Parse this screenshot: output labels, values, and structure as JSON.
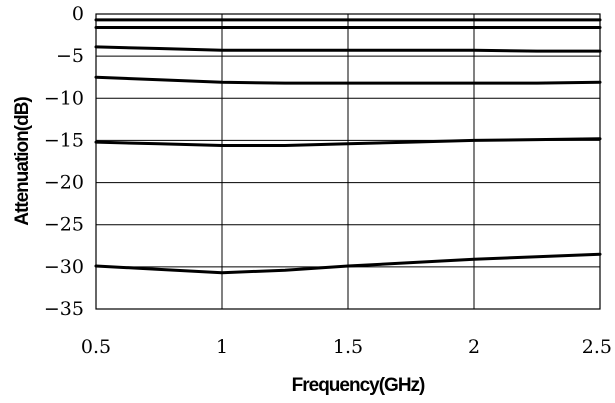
{
  "chart_data": {
    "type": "line",
    "title": "",
    "xlabel": "Frequency(GHz)",
    "ylabel": "Attenuation(dB)",
    "xlim": [
      0.5,
      2.5
    ],
    "ylim": [
      -35,
      0
    ],
    "xticks": [
      "0.5",
      "1",
      "1.5",
      "2",
      "2.5"
    ],
    "yticks": [
      "0",
      "−5",
      "−10",
      "−15",
      "−20",
      "−25",
      "−30",
      "−35"
    ],
    "grid": true,
    "legend": "none",
    "x": [
      0.5,
      0.75,
      1.0,
      1.25,
      1.5,
      1.75,
      2.0,
      2.25,
      2.5
    ],
    "series": [
      {
        "values": [
          -0.7,
          -0.7,
          -0.7,
          -0.7,
          -0.7,
          -0.7,
          -0.7,
          -0.7,
          -0.7
        ]
      },
      {
        "values": [
          -1.6,
          -1.6,
          -1.6,
          -1.6,
          -1.6,
          -1.6,
          -1.6,
          -1.6,
          -1.6
        ]
      },
      {
        "values": [
          -3.9,
          -4.1,
          -4.3,
          -4.3,
          -4.3,
          -4.3,
          -4.3,
          -4.4,
          -4.4
        ]
      },
      {
        "values": [
          -7.5,
          -7.8,
          -8.1,
          -8.2,
          -8.2,
          -8.2,
          -8.2,
          -8.2,
          -8.1
        ]
      },
      {
        "values": [
          -15.2,
          -15.4,
          -15.6,
          -15.6,
          -15.4,
          -15.2,
          -15.0,
          -14.9,
          -14.8
        ]
      },
      {
        "values": [
          -29.9,
          -30.3,
          -30.7,
          -30.4,
          -29.9,
          -29.5,
          -29.1,
          -28.8,
          -28.5
        ]
      }
    ]
  }
}
